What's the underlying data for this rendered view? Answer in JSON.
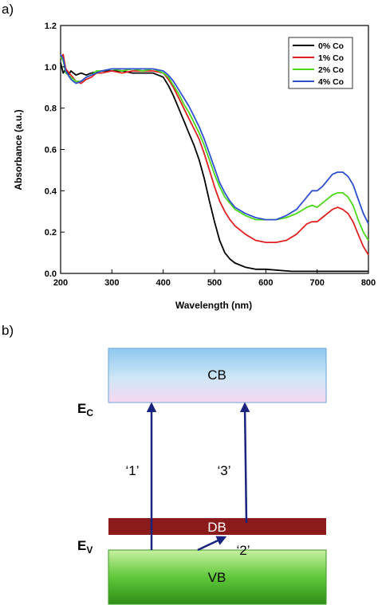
{
  "panel_a_label": "a)",
  "panel_b_label": "b)",
  "chart_data": {
    "type": "line",
    "title": "",
    "xlabel": "Wavelength (nm)",
    "ylabel": "Absorbance (a.u.)",
    "xlim": [
      200,
      800
    ],
    "ylim": [
      0.0,
      1.2
    ],
    "xticks": [
      "200",
      "300",
      "400",
      "500",
      "600",
      "700",
      "800"
    ],
    "yticks": [
      "0.0",
      "0.2",
      "0.4",
      "0.6",
      "0.8",
      "1.0",
      "1.2"
    ],
    "grid": false,
    "legend_position": "top-right",
    "series": [
      {
        "name": "0% Co",
        "color": "#000000",
        "points": [
          [
            200,
            1.02
          ],
          [
            205,
            0.97
          ],
          [
            210,
            0.99
          ],
          [
            215,
            0.96
          ],
          [
            220,
            0.98
          ],
          [
            230,
            0.96
          ],
          [
            240,
            0.97
          ],
          [
            250,
            0.96
          ],
          [
            260,
            0.97
          ],
          [
            280,
            0.98
          ],
          [
            300,
            0.98
          ],
          [
            320,
            0.98
          ],
          [
            340,
            0.97
          ],
          [
            360,
            0.97
          ],
          [
            380,
            0.97
          ],
          [
            400,
            0.95
          ],
          [
            410,
            0.91
          ],
          [
            420,
            0.86
          ],
          [
            430,
            0.8
          ],
          [
            440,
            0.74
          ],
          [
            450,
            0.68
          ],
          [
            460,
            0.62
          ],
          [
            470,
            0.55
          ],
          [
            480,
            0.46
          ],
          [
            490,
            0.35
          ],
          [
            500,
            0.25
          ],
          [
            510,
            0.16
          ],
          [
            520,
            0.1
          ],
          [
            530,
            0.07
          ],
          [
            540,
            0.05
          ],
          [
            560,
            0.03
          ],
          [
            580,
            0.02
          ],
          [
            600,
            0.02
          ],
          [
            650,
            0.01
          ],
          [
            700,
            0.01
          ],
          [
            750,
            0.01
          ],
          [
            800,
            0.01
          ]
        ]
      },
      {
        "name": "1% Co",
        "color": "#e02020",
        "points": [
          [
            200,
            1.04
          ],
          [
            205,
            1.06
          ],
          [
            210,
            0.99
          ],
          [
            220,
            0.96
          ],
          [
            230,
            0.93
          ],
          [
            240,
            0.92
          ],
          [
            250,
            0.94
          ],
          [
            260,
            0.95
          ],
          [
            270,
            0.97
          ],
          [
            280,
            0.97
          ],
          [
            300,
            0.98
          ],
          [
            320,
            0.97
          ],
          [
            340,
            0.98
          ],
          [
            360,
            0.98
          ],
          [
            380,
            0.98
          ],
          [
            400,
            0.97
          ],
          [
            410,
            0.94
          ],
          [
            420,
            0.9
          ],
          [
            430,
            0.85
          ],
          [
            440,
            0.8
          ],
          [
            450,
            0.75
          ],
          [
            460,
            0.7
          ],
          [
            470,
            0.65
          ],
          [
            480,
            0.58
          ],
          [
            490,
            0.5
          ],
          [
            500,
            0.42
          ],
          [
            510,
            0.35
          ],
          [
            520,
            0.3
          ],
          [
            530,
            0.26
          ],
          [
            540,
            0.23
          ],
          [
            560,
            0.19
          ],
          [
            580,
            0.16
          ],
          [
            600,
            0.15
          ],
          [
            620,
            0.15
          ],
          [
            640,
            0.16
          ],
          [
            660,
            0.19
          ],
          [
            680,
            0.24
          ],
          [
            690,
            0.25
          ],
          [
            700,
            0.25
          ],
          [
            710,
            0.27
          ],
          [
            720,
            0.29
          ],
          [
            730,
            0.31
          ],
          [
            740,
            0.32
          ],
          [
            750,
            0.31
          ],
          [
            760,
            0.29
          ],
          [
            770,
            0.25
          ],
          [
            780,
            0.19
          ],
          [
            790,
            0.13
          ],
          [
            800,
            0.09
          ]
        ]
      },
      {
        "name": "2% Co",
        "color": "#4cd818",
        "points": [
          [
            200,
            1.05
          ],
          [
            205,
            1.03
          ],
          [
            210,
            0.97
          ],
          [
            220,
            0.95
          ],
          [
            230,
            0.93
          ],
          [
            240,
            0.93
          ],
          [
            250,
            0.95
          ],
          [
            260,
            0.96
          ],
          [
            270,
            0.98
          ],
          [
            280,
            0.98
          ],
          [
            300,
            0.99
          ],
          [
            320,
            0.98
          ],
          [
            340,
            0.99
          ],
          [
            360,
            0.98
          ],
          [
            380,
            0.99
          ],
          [
            400,
            0.97
          ],
          [
            410,
            0.95
          ],
          [
            420,
            0.91
          ],
          [
            430,
            0.87
          ],
          [
            440,
            0.82
          ],
          [
            450,
            0.78
          ],
          [
            460,
            0.73
          ],
          [
            470,
            0.68
          ],
          [
            480,
            0.62
          ],
          [
            490,
            0.55
          ],
          [
            500,
            0.48
          ],
          [
            510,
            0.42
          ],
          [
            520,
            0.37
          ],
          [
            530,
            0.34
          ],
          [
            540,
            0.31
          ],
          [
            560,
            0.28
          ],
          [
            580,
            0.26
          ],
          [
            600,
            0.26
          ],
          [
            620,
            0.26
          ],
          [
            640,
            0.27
          ],
          [
            660,
            0.29
          ],
          [
            680,
            0.32
          ],
          [
            690,
            0.33
          ],
          [
            700,
            0.32
          ],
          [
            710,
            0.34
          ],
          [
            720,
            0.36
          ],
          [
            730,
            0.38
          ],
          [
            740,
            0.39
          ],
          [
            750,
            0.39
          ],
          [
            760,
            0.37
          ],
          [
            770,
            0.33
          ],
          [
            780,
            0.26
          ],
          [
            790,
            0.2
          ],
          [
            800,
            0.16
          ]
        ]
      },
      {
        "name": "4% Co",
        "color": "#2e4fd0",
        "points": [
          [
            200,
            1.06
          ],
          [
            205,
            1.04
          ],
          [
            210,
            0.98
          ],
          [
            220,
            0.94
          ],
          [
            230,
            0.92
          ],
          [
            240,
            0.93
          ],
          [
            250,
            0.95
          ],
          [
            260,
            0.96
          ],
          [
            270,
            0.97
          ],
          [
            280,
            0.98
          ],
          [
            300,
            0.99
          ],
          [
            320,
            0.99
          ],
          [
            340,
            0.99
          ],
          [
            360,
            0.99
          ],
          [
            380,
            0.99
          ],
          [
            400,
            0.98
          ],
          [
            410,
            0.96
          ],
          [
            420,
            0.93
          ],
          [
            430,
            0.89
          ],
          [
            440,
            0.85
          ],
          [
            450,
            0.81
          ],
          [
            460,
            0.76
          ],
          [
            470,
            0.71
          ],
          [
            480,
            0.65
          ],
          [
            490,
            0.58
          ],
          [
            500,
            0.51
          ],
          [
            510,
            0.44
          ],
          [
            520,
            0.39
          ],
          [
            530,
            0.35
          ],
          [
            540,
            0.32
          ],
          [
            560,
            0.29
          ],
          [
            580,
            0.27
          ],
          [
            600,
            0.26
          ],
          [
            620,
            0.26
          ],
          [
            640,
            0.28
          ],
          [
            660,
            0.31
          ],
          [
            680,
            0.37
          ],
          [
            690,
            0.4
          ],
          [
            700,
            0.4
          ],
          [
            710,
            0.42
          ],
          [
            720,
            0.45
          ],
          [
            730,
            0.48
          ],
          [
            740,
            0.49
          ],
          [
            750,
            0.49
          ],
          [
            760,
            0.47
          ],
          [
            770,
            0.43
          ],
          [
            780,
            0.36
          ],
          [
            790,
            0.29
          ],
          [
            800,
            0.24
          ]
        ]
      }
    ]
  },
  "diagram": {
    "cb_label": "CB",
    "db_label": "DB",
    "vb_label": "VB",
    "ec_label": "E",
    "ec_sub": "C",
    "ev_label": "E",
    "ev_sub": "V",
    "t1_label": "‘1’",
    "t2_label": "‘2’",
    "t3_label": "‘3’",
    "arrow_color": "#1a237e",
    "db_color": "#8b1a1a"
  }
}
